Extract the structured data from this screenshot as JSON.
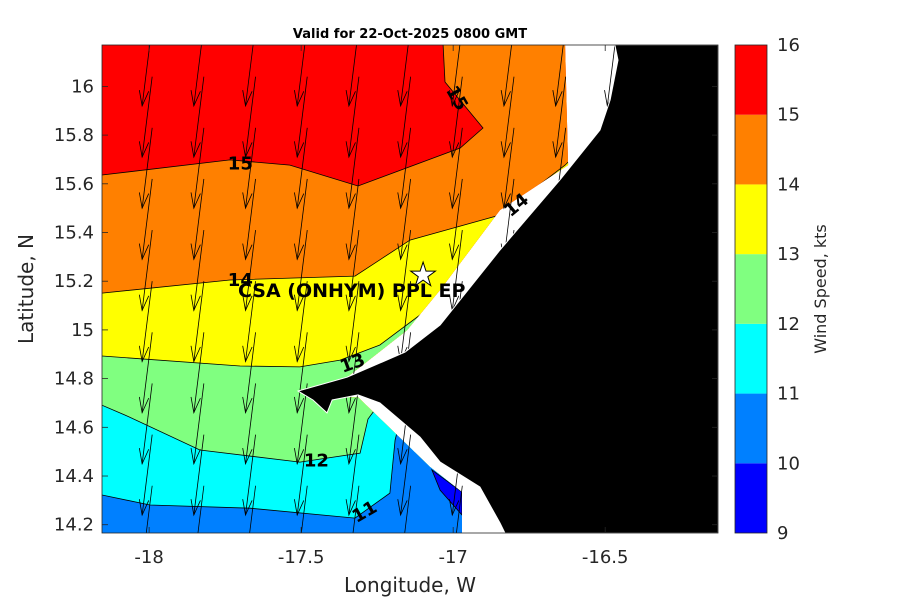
{
  "chart_data": {
    "type": "contour",
    "title": "Valid for 22-Oct-2025 0800 GMT",
    "xlabel": "Longitude, W",
    "ylabel": "Latitude, N",
    "xlim": [
      -18.155,
      -16.129
    ],
    "ylim": [
      14.166,
      16.17
    ],
    "xticks": [
      -18,
      -17.5,
      -17,
      -16.5
    ],
    "xtick_labels": [
      "-18",
      "-17.5",
      "-17",
      "-16.5"
    ],
    "yticks": [
      14.2,
      14.4,
      14.6,
      14.8,
      15,
      15.2,
      15.4,
      15.6,
      15.8,
      16
    ],
    "ytick_labels": [
      "14.2",
      "14.4",
      "14.6",
      "14.8",
      "15",
      "15.2",
      "15.4",
      "15.6",
      "15.8",
      "16"
    ],
    "colorbar": {
      "label": "Wind Speed, kts",
      "levels": [
        9,
        10,
        11,
        12,
        13,
        14,
        15,
        16
      ],
      "level_labels": [
        "9",
        "10",
        "11",
        "12",
        "13",
        "14",
        "15",
        "16"
      ],
      "colors": [
        "#0000ff",
        "#0080ff",
        "#00ffff",
        "#80ff80",
        "#ffff00",
        "#ff8000",
        "#ff0000"
      ]
    },
    "land_color": "#000000",
    "data_extent": [
      [
        -18.155,
        16.17
      ],
      [
        -16.632,
        16.17
      ],
      [
        -16.622,
        15.677
      ],
      [
        -16.846,
        15.492
      ],
      [
        -17.043,
        15.164
      ],
      [
        -17.152,
        14.999
      ],
      [
        -17.349,
        14.806
      ],
      [
        -17.504,
        14.753
      ],
      [
        -17.405,
        14.72
      ],
      [
        -17.313,
        14.724
      ],
      [
        -17.076,
        14.437
      ],
      [
        -16.971,
        14.334
      ],
      [
        -16.971,
        14.166
      ],
      [
        -18.155,
        14.166
      ]
    ],
    "land": [
      [
        -16.468,
        16.17
      ],
      [
        -16.458,
        16.108
      ],
      [
        -16.484,
        15.944
      ],
      [
        -16.517,
        15.821
      ],
      [
        -16.649,
        15.616
      ],
      [
        -16.846,
        15.328
      ],
      [
        -17.043,
        15.02
      ],
      [
        -17.158,
        14.909
      ],
      [
        -17.349,
        14.806
      ],
      [
        -17.51,
        14.749
      ],
      [
        -17.461,
        14.712
      ],
      [
        -17.415,
        14.659
      ],
      [
        -17.398,
        14.712
      ],
      [
        -17.313,
        14.733
      ],
      [
        -17.241,
        14.7
      ],
      [
        -17.109,
        14.56
      ],
      [
        -17.043,
        14.457
      ],
      [
        -16.912,
        14.355
      ],
      [
        -16.846,
        14.207
      ],
      [
        -16.83,
        14.166
      ],
      [
        -16.129,
        14.166
      ],
      [
        -16.129,
        16.17
      ]
    ],
    "contours": [
      {
        "level": 15,
        "fill_below": "#ff8000",
        "line": [
          [
            -18.155,
            15.636
          ],
          [
            -17.734,
            15.698
          ],
          [
            -17.537,
            15.677
          ],
          [
            -17.313,
            15.591
          ],
          [
            -16.977,
            15.747
          ],
          [
            -16.902,
            15.829
          ],
          [
            -17.027,
            16.018
          ],
          [
            -17.033,
            16.17
          ]
        ]
      },
      {
        "level": 14,
        "fill_below": "#ffff00",
        "line": [
          [
            -18.155,
            15.151
          ],
          [
            -17.734,
            15.205
          ],
          [
            -17.323,
            15.221
          ],
          [
            -17.142,
            15.369
          ],
          [
            -16.846,
            15.472
          ],
          [
            -16.632,
            15.677
          ],
          [
            -16.517,
            15.821
          ]
        ]
      },
      {
        "level": 13,
        "fill_below": "#80ff80",
        "line": [
          [
            -18.155,
            14.893
          ],
          [
            -17.701,
            14.852
          ],
          [
            -17.504,
            14.848
          ],
          [
            -17.372,
            14.876
          ],
          [
            -17.241,
            14.938
          ],
          [
            -17.043,
            15.123
          ]
        ]
      },
      {
        "level": 12,
        "fill_below": "#00ffff",
        "line": [
          [
            -18.155,
            14.691
          ],
          [
            -18.079,
            14.65
          ],
          [
            -17.833,
            14.507
          ],
          [
            -17.504,
            14.457
          ],
          [
            -17.306,
            14.494
          ],
          [
            -17.28,
            14.634
          ],
          [
            -17.241,
            14.7
          ]
        ]
      },
      {
        "level": 11,
        "fill_below": "#0080ff",
        "line": [
          [
            -18.155,
            14.322
          ],
          [
            -17.997,
            14.281
          ],
          [
            -17.668,
            14.268
          ],
          [
            -17.323,
            14.227
          ],
          [
            -17.208,
            14.33
          ],
          [
            -17.191,
            14.548
          ],
          [
            -17.185,
            14.577
          ],
          [
            -17.1,
            14.62
          ]
        ]
      },
      {
        "level": 10,
        "fill_below": "#0000ff",
        "closed": true,
        "line": [
          [
            -17.07,
            14.425
          ],
          [
            -16.971,
            14.334
          ],
          [
            -16.971,
            14.24
          ],
          [
            -17.043,
            14.342
          ]
        ]
      }
    ],
    "contour_labels": [
      {
        "text": "15",
        "lon": -17.7,
        "lat": 15.68,
        "angle": 0
      },
      {
        "text": "15",
        "lon": -16.99,
        "lat": 15.95,
        "angle": 60
      },
      {
        "text": "14",
        "lon": -16.79,
        "lat": 15.51,
        "angle": -40
      },
      {
        "text": "14",
        "lon": -17.7,
        "lat": 15.2,
        "angle": 0
      },
      {
        "text": "13",
        "lon": -17.33,
        "lat": 14.86,
        "angle": -20
      },
      {
        "text": "12",
        "lon": -17.45,
        "lat": 14.46,
        "angle": 0
      },
      {
        "text": "11",
        "lon": -17.29,
        "lat": 14.25,
        "angle": -30
      }
    ],
    "wind_vectors": {
      "lon_start": -17.99,
      "lon_step": 0.17,
      "lon_count": 10,
      "lat_start": 16.25,
      "lat_step": -0.21,
      "lat_count": 10,
      "u_deg": -0.033,
      "v_deg": -0.33
    },
    "site": {
      "label": "CSA (ONHYM) PPL EP",
      "lon": -17.099,
      "lat": 15.225,
      "marker": "star"
    }
  }
}
